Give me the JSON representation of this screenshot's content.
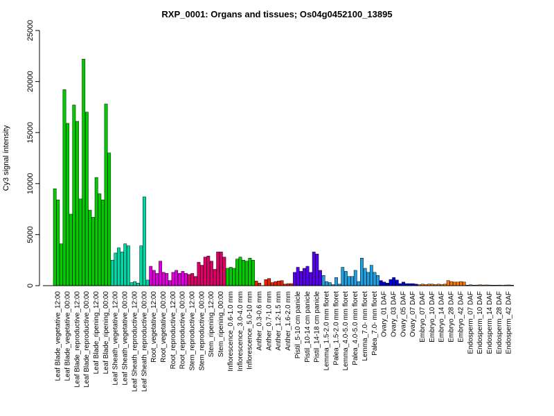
{
  "chart_data": {
    "type": "bar",
    "title": "RXP_0001: Organs and tissues; Os04g0452100_13895",
    "xlabel": "",
    "ylabel": "Cy3 signal intensity",
    "ylim": [
      0,
      25000
    ],
    "yticks": [
      0,
      5000,
      10000,
      15000,
      20000,
      25000
    ],
    "grid": false,
    "legend": "none",
    "groups": [
      {
        "name": "Leaf Blade_vegetative_12:00",
        "color": "#00cc00",
        "values": [
          9500,
          8400,
          4100
        ]
      },
      {
        "name": "Leaf Blade_vegetative_00:00",
        "color": "#00cc00",
        "values": [
          19200,
          15900,
          7000
        ]
      },
      {
        "name": "Leaf Blade_reproductive_12:00",
        "color": "#00cc00",
        "values": [
          17700,
          16100,
          8500
        ]
      },
      {
        "name": "Leaf Blade_reproductive_00:00",
        "color": "#00cc00",
        "values": [
          22200,
          17000,
          7400
        ]
      },
      {
        "name": "Leaf Blade_ripening_12:00",
        "color": "#00cc00",
        "values": [
          6700,
          10600,
          9000
        ]
      },
      {
        "name": "Leaf Blade_ripening_00:00",
        "color": "#00cc00",
        "values": [
          8400,
          17800,
          13000
        ]
      },
      {
        "name": "Leaf Sheath_vegetative_12:00",
        "color": "#00d9a6",
        "values": [
          2500,
          3200,
          3700
        ]
      },
      {
        "name": "Leaf Sheath_vegetative_00:00",
        "color": "#00d9a6",
        "values": [
          3300,
          4100,
          3900
        ]
      },
      {
        "name": "Leaf Sheath_reproductive_12:00",
        "color": "#00d9a6",
        "values": [
          300,
          400,
          250
        ]
      },
      {
        "name": "Leaf Sheath_reproductive_00:00",
        "color": "#00d9a6",
        "values": [
          3900,
          8700,
          550
        ]
      },
      {
        "name": "Root_vegetative_12:00",
        "color": "#dd00dd",
        "values": [
          1900,
          1500,
          1200
        ]
      },
      {
        "name": "Root_vegetative_00:00",
        "color": "#dd00dd",
        "values": [
          2400,
          1300,
          1200
        ]
      },
      {
        "name": "Root_reproductive_12:00",
        "color": "#dd00dd",
        "values": [
          500,
          1300,
          1500
        ]
      },
      {
        "name": "Root_reproductive_00:00",
        "color": "#dd00dd",
        "values": [
          1200,
          1400,
          1200
        ]
      },
      {
        "name": "Stem_reproductive_12:00",
        "color": "#dd0066",
        "values": [
          1100,
          1200,
          900
        ]
      },
      {
        "name": "Stem_reproductive_00:00",
        "color": "#dd0066",
        "values": [
          2300,
          2000,
          2800
        ]
      },
      {
        "name": "Stem_ripening_12:00",
        "color": "#dd0066",
        "values": [
          2900,
          2400,
          1600
        ]
      },
      {
        "name": "Stem_ripening_00:00",
        "color": "#dd0066",
        "values": [
          3300,
          3300,
          2800
        ]
      },
      {
        "name": "Inflorescence_0.6-1.0 mm",
        "color": "#00cc00",
        "values": [
          1700,
          1800,
          1700
        ]
      },
      {
        "name": "Inflorescence_3.0-4.0 mm",
        "color": "#00cc00",
        "values": [
          2600,
          2800,
          2500
        ]
      },
      {
        "name": "Inflorescence_5.0-10 mm",
        "color": "#00cc00",
        "values": [
          2400,
          2700,
          2500
        ]
      },
      {
        "name": "Anther_0.3-0.6 mm",
        "color": "#ee2200",
        "values": [
          450,
          250,
          0
        ]
      },
      {
        "name": "Anther_0.7-1.0 mm",
        "color": "#ee2200",
        "values": [
          600,
          700,
          300
        ]
      },
      {
        "name": "Anther_1.2-1.5 mm",
        "color": "#ee2200",
        "values": [
          400,
          450,
          500
        ]
      },
      {
        "name": "Anther_1.6-2.0 mm",
        "color": "#ee2200",
        "values": [
          150,
          200,
          200
        ]
      },
      {
        "name": "Pistil_5-10 cm panicle",
        "color": "#5500ee",
        "values": [
          1300,
          1800,
          1400
        ]
      },
      {
        "name": "Pistil_10-14 cm panicle",
        "color": "#5500ee",
        "values": [
          1700,
          1900,
          1300
        ]
      },
      {
        "name": "Pistil_14-18 cm panicle",
        "color": "#5500ee",
        "values": [
          3300,
          3100,
          1500
        ]
      },
      {
        "name": "Lemma_1.5-2.0 mm floret",
        "color": "#1f9fe0",
        "values": [
          1000,
          400,
          300
        ]
      },
      {
        "name": "Palea_1.5-2.0 mm floret",
        "color": "#1f9fe0",
        "values": [
          100,
          800,
          150
        ]
      },
      {
        "name": "Lemma_4.0-5.0 mm floret",
        "color": "#1f9fe0",
        "values": [
          1800,
          1400,
          900
        ]
      },
      {
        "name": "Palea_4.0-5.0 mm floret",
        "color": "#1f9fe0",
        "values": [
          900,
          1500,
          400
        ]
      },
      {
        "name": "Lemma_7.0- mm floret",
        "color": "#1f9fe0",
        "values": [
          2700,
          1700,
          1300
        ]
      },
      {
        "name": "Palea_7.0- mm floret",
        "color": "#1f9fe0",
        "values": [
          2000,
          1300,
          1000
        ]
      },
      {
        "name": "Ovary_01 DAF",
        "color": "#0000dd",
        "values": [
          500,
          350,
          250
        ]
      },
      {
        "name": "Ovary_03 DAF",
        "color": "#0000dd",
        "values": [
          600,
          800,
          550
        ]
      },
      {
        "name": "Ovary_05 DAF",
        "color": "#0000dd",
        "values": [
          200,
          350,
          200
        ]
      },
      {
        "name": "Ovary_07 DAF",
        "color": "#0000dd",
        "values": [
          200,
          200,
          150
        ]
      },
      {
        "name": "Embryo_07 DAF",
        "color": "#ff7700",
        "values": [
          100,
          150,
          100
        ]
      },
      {
        "name": "Embryo_10 DAF",
        "color": "#ff7700",
        "values": [
          150,
          150,
          100
        ]
      },
      {
        "name": "Embryo_14 DAF",
        "color": "#ff7700",
        "values": [
          150,
          100,
          150
        ]
      },
      {
        "name": "Embryo_28 DAF",
        "color": "#ff7700",
        "values": [
          500,
          400,
          350
        ]
      },
      {
        "name": "Embryo_42 DAF",
        "color": "#ff7700",
        "values": [
          350,
          400,
          350
        ]
      },
      {
        "name": "Endosperm_07 DAF",
        "color": "#ff7700",
        "values": [
          50,
          80,
          50
        ]
      },
      {
        "name": "Endosperm_10 DAF",
        "color": "#ff7700",
        "values": [
          60,
          80,
          60
        ]
      },
      {
        "name": "Endosperm_14 DAF",
        "color": "#ff7700",
        "values": [
          70,
          60,
          50
        ]
      },
      {
        "name": "Endosperm_28 DAF",
        "color": "#ff7700",
        "values": [
          50,
          60,
          40
        ]
      },
      {
        "name": "Endosperm_42 DAF",
        "color": "#ff7700",
        "values": [
          60,
          70,
          50
        ]
      }
    ]
  }
}
